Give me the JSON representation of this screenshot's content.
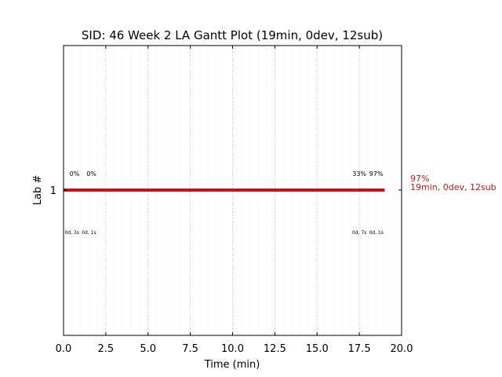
{
  "chart_data": {
    "type": "gantt",
    "title": "SID: 46 Week 2 LA Gantt Plot (19min, 0dev, 12sub)",
    "xlabel": "Time (min)",
    "ylabel": "Lab #",
    "xlim": [
      0,
      20
    ],
    "xticks": [
      "0.0",
      "2.5",
      "5.0",
      "7.5",
      "10.0",
      "12.5",
      "15.0",
      "17.5",
      "20.0"
    ],
    "xtick_values": [
      0,
      2.5,
      5,
      7.5,
      10,
      12.5,
      15,
      17.5,
      20
    ],
    "yticks": [
      "1"
    ],
    "grid": true,
    "colors": {
      "bar": "#c0161b",
      "grid_major": "#aaaaaa",
      "grid_minor": "#dddddd"
    },
    "bars": [
      {
        "lab": "1",
        "start": 0,
        "end": 19,
        "summary_pct": "97%",
        "summary_text": "19min, 0dev, 12sub"
      }
    ],
    "annotations_top": [
      {
        "x": 0.65,
        "text": "0%"
      },
      {
        "x": 1.65,
        "text": "0%"
      },
      {
        "x": 17.5,
        "text": "33%"
      },
      {
        "x": 18.5,
        "text": "97%"
      }
    ],
    "annotations_bottom": [
      {
        "x": 0.5,
        "text": "0d, 3s"
      },
      {
        "x": 1.5,
        "text": "0d, 1s"
      },
      {
        "x": 17.5,
        "text": "0d, 7s"
      },
      {
        "x": 18.5,
        "text": "0d, 1s"
      }
    ]
  }
}
